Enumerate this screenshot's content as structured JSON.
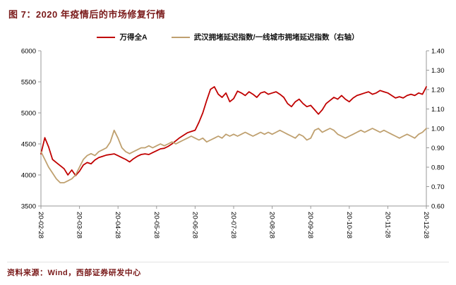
{
  "title": "图 7：2020 年疫情后的市场修复行情",
  "legend": {
    "series1": "万得全A",
    "series2": "武汉拥堵延迟指数/一线城市拥堵延迟指数（右轴）"
  },
  "source": "资料来源：Wind，西部证券研发中心",
  "colors": {
    "series1": "#c00000",
    "series2": "#bfa06f",
    "title_text": "#7a1a1a",
    "axis": "#999999",
    "tick_text": "#000000"
  },
  "chart_data": {
    "type": "line",
    "title": "2020 年疫情后的市场修复行情",
    "legend_position": "top",
    "grid": false,
    "categories": [
      "20-02-28",
      "20-03-28",
      "20-04-28",
      "20-05-28",
      "20-06-28",
      "20-07-28",
      "20-08-28",
      "20-09-28",
      "20-10-28",
      "20-11-28",
      "20-12-28"
    ],
    "left_axis": {
      "min": 3500,
      "max": 6000,
      "step": 500
    },
    "right_axis": {
      "min": 0.6,
      "max": 1.4,
      "step": 0.1
    },
    "series": [
      {
        "name": "万得全A",
        "axis": "left",
        "color": "#c00000",
        "values": [
          4340,
          4600,
          4450,
          4250,
          4200,
          4150,
          4100,
          4000,
          4080,
          3990,
          4060,
          4160,
          4200,
          4180,
          4240,
          4280,
          4300,
          4320,
          4330,
          4340,
          4310,
          4280,
          4250,
          4210,
          4260,
          4300,
          4330,
          4340,
          4330,
          4360,
          4390,
          4420,
          4430,
          4460,
          4500,
          4550,
          4600,
          4640,
          4680,
          4700,
          4720,
          4850,
          5000,
          5200,
          5380,
          5420,
          5300,
          5250,
          5320,
          5180,
          5230,
          5350,
          5320,
          5280,
          5340,
          5300,
          5250,
          5320,
          5340,
          5300,
          5320,
          5340,
          5300,
          5250,
          5150,
          5100,
          5180,
          5220,
          5150,
          5100,
          5120,
          5050,
          4980,
          5050,
          5150,
          5200,
          5250,
          5220,
          5280,
          5220,
          5180,
          5240,
          5280,
          5300,
          5320,
          5340,
          5300,
          5320,
          5360,
          5340,
          5320,
          5280,
          5240,
          5260,
          5240,
          5280,
          5300,
          5280,
          5320,
          5300,
          5420
        ]
      },
      {
        "name": "武汉拥堵延迟指数/一线城市拥堵延迟指数（右轴）",
        "axis": "right",
        "color": "#bfa06f",
        "values": [
          0.88,
          0.84,
          0.8,
          0.77,
          0.74,
          0.72,
          0.72,
          0.73,
          0.74,
          0.76,
          0.8,
          0.84,
          0.86,
          0.87,
          0.86,
          0.88,
          0.89,
          0.9,
          0.93,
          0.99,
          0.95,
          0.9,
          0.88,
          0.87,
          0.88,
          0.89,
          0.9,
          0.9,
          0.91,
          0.9,
          0.91,
          0.92,
          0.91,
          0.92,
          0.93,
          0.92,
          0.93,
          0.94,
          0.95,
          0.96,
          0.95,
          0.94,
          0.95,
          0.93,
          0.94,
          0.95,
          0.96,
          0.95,
          0.97,
          0.96,
          0.97,
          0.96,
          0.97,
          0.98,
          0.97,
          0.96,
          0.97,
          0.98,
          0.97,
          0.98,
          0.97,
          0.98,
          0.99,
          0.98,
          0.97,
          0.96,
          0.95,
          0.97,
          0.96,
          0.94,
          0.95,
          0.99,
          1.0,
          0.98,
          0.99,
          1.0,
          0.99,
          0.97,
          0.96,
          0.95,
          0.96,
          0.97,
          0.98,
          0.99,
          0.98,
          0.99,
          1.0,
          0.99,
          0.98,
          0.99,
          0.98,
          0.97,
          0.96,
          0.95,
          0.96,
          0.97,
          0.96,
          0.95,
          0.97,
          0.98,
          1.0
        ]
      }
    ]
  }
}
